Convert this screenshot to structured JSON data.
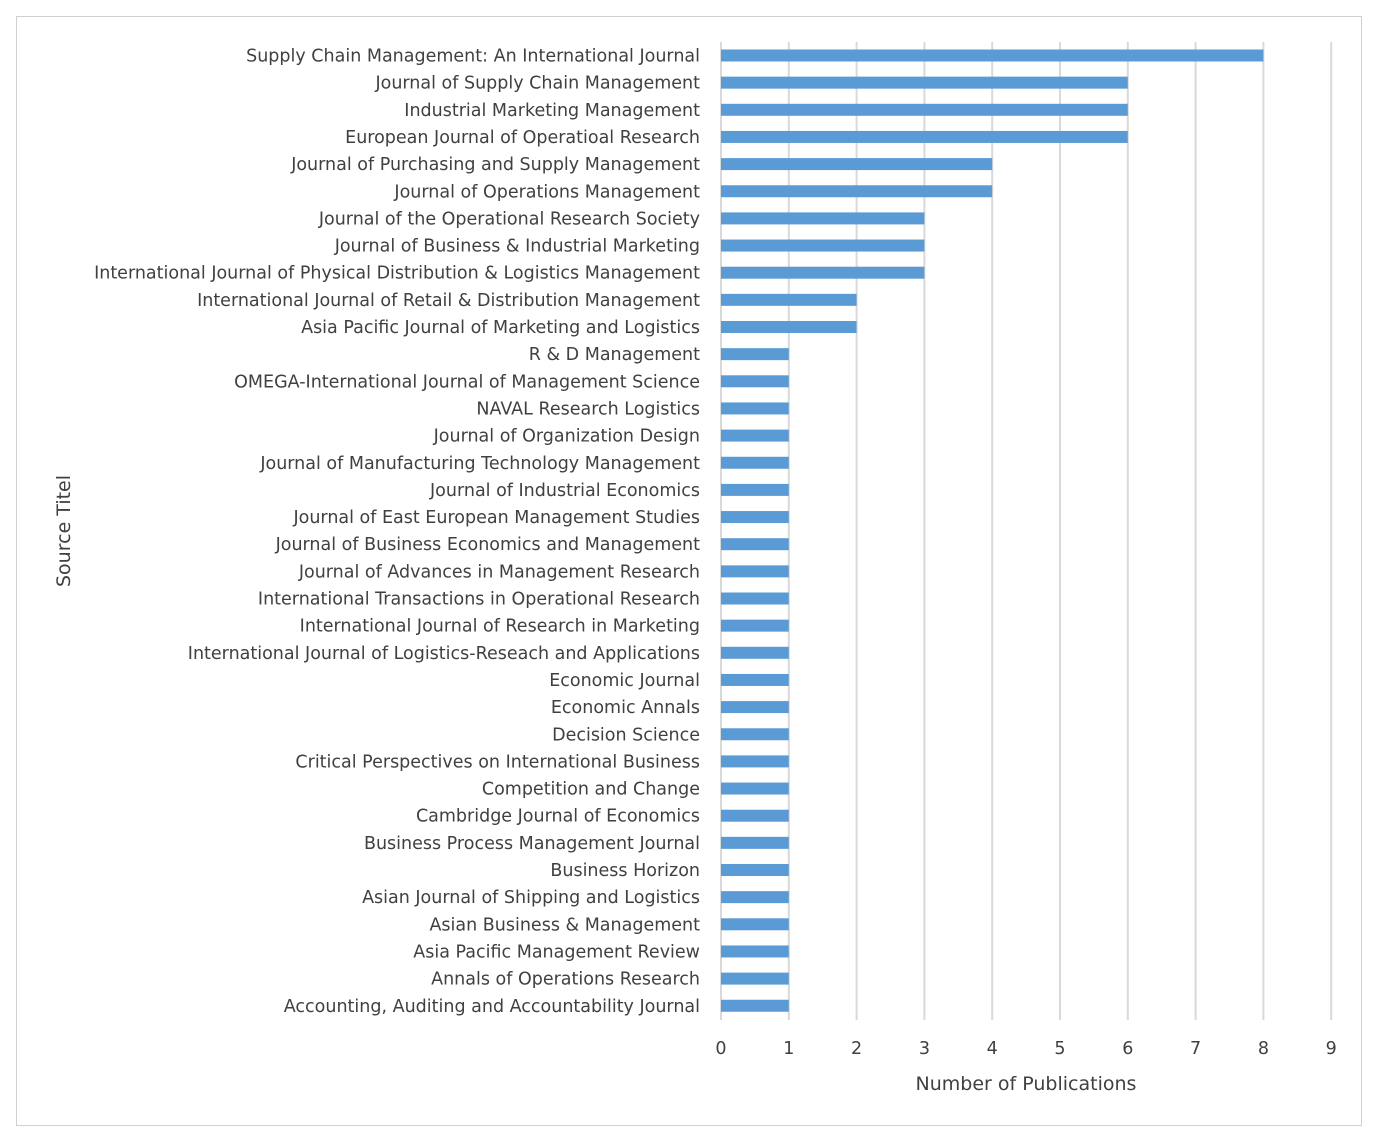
{
  "chart_data": {
    "type": "bar",
    "orientation": "horizontal",
    "xlabel": "Number of Publications",
    "ylabel": "Source Titel",
    "xlim": [
      0,
      9
    ],
    "xticks": [
      "0",
      "1",
      "2",
      "3",
      "4",
      "5",
      "6",
      "7",
      "8",
      "9"
    ],
    "grid": "vertical",
    "bar_color": "#5B9BD5",
    "grid_color": "#D9D9D9",
    "categories": [
      "Supply Chain Management: An International Journal",
      "Journal of Supply Chain Management",
      "Industrial Marketing Management",
      "European Journal of Operatioal Research",
      "Journal of Purchasing and Supply Management",
      "Journal of Operations Management",
      "Journal of the Operational Research Society",
      "Journal of Business & Industrial Marketing",
      "International Journal of Physical Distribution & Logistics Management",
      "International Journal of Retail & Distribution Management",
      "Asia Pacific Journal of Marketing and Logistics",
      "R & D Management",
      "OMEGA-International Journal of Management Science",
      "NAVAL Research Logistics",
      "Journal of Organization Design",
      "Journal of Manufacturing Technology Management",
      "Journal of Industrial Economics",
      "Journal of East European Management Studies",
      "Journal of Business Economics and Management",
      "Journal of Advances in Management Research",
      "International Transactions in Operational Research",
      "International Journal of Research in Marketing",
      "International Journal of  Logistics-Reseach and Applications",
      "Economic Journal",
      "Economic Annals",
      "Decision Science",
      "Critical Perspectives on International Business",
      "Competition and Change",
      "Cambridge Journal of Economics",
      "Business Process Management Journal",
      "Business Horizon",
      "Asian Journal of Shipping and Logistics",
      "Asian Business & Management",
      "Asia Pacific Management Review",
      "Annals of Operations Research",
      "Accounting, Auditing and Accountability Journal"
    ],
    "values": [
      8,
      6,
      6,
      6,
      4,
      4,
      3,
      3,
      3,
      2,
      2,
      1,
      1,
      1,
      1,
      1,
      1,
      1,
      1,
      1,
      1,
      1,
      1,
      1,
      1,
      1,
      1,
      1,
      1,
      1,
      1,
      1,
      1,
      1,
      1,
      1
    ]
  }
}
